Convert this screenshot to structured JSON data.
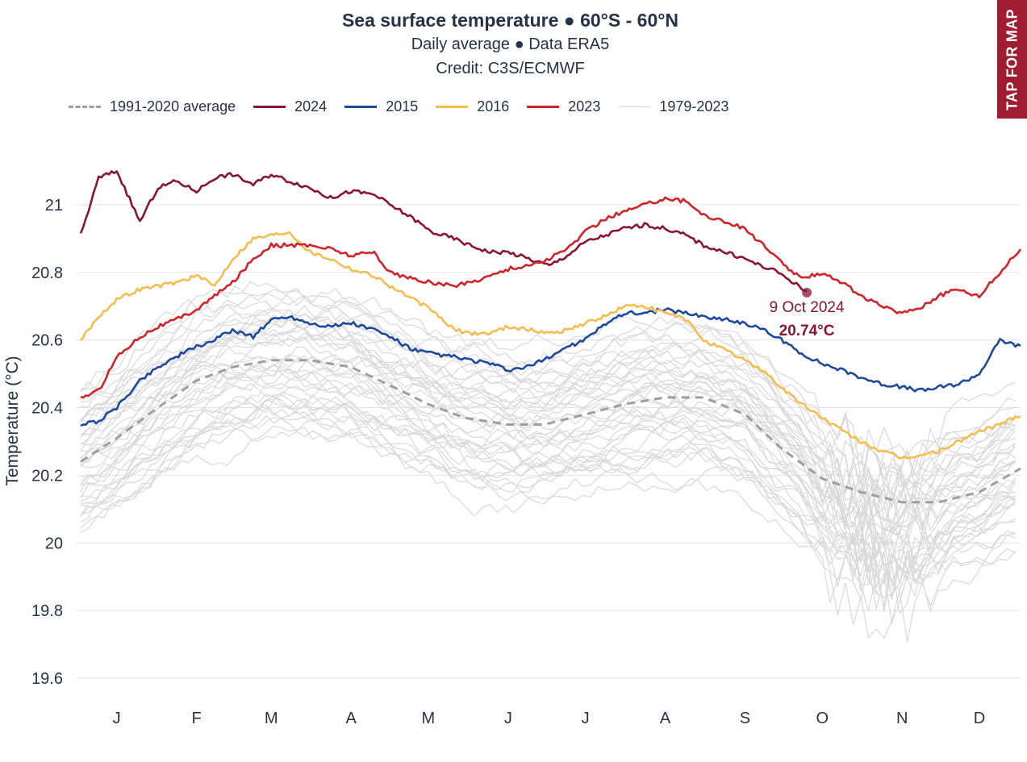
{
  "header": {
    "title": "Sea surface temperature ● 60°S - 60°N",
    "subtitle": "Daily average ● Data ERA5",
    "credit": "Credit: C3S/ECMWF"
  },
  "tap_button": {
    "label": "TAP FOR MAP"
  },
  "colors": {
    "avg": "#9e9e9e",
    "y2024": "#8a1530",
    "y2015": "#1f4a9c",
    "y2016": "#f5bd4f",
    "y2023": "#d0232a",
    "y1979_2023": "#d9d9d9",
    "accent": "#a01c31"
  },
  "legend": [
    {
      "name": "1991-2020 average",
      "color": "#9e9e9e",
      "dashed": true
    },
    {
      "name": "2024",
      "color": "#8a1530",
      "dashed": false
    },
    {
      "name": "2015",
      "color": "#1f4a9c",
      "dashed": false
    },
    {
      "name": "2016",
      "color": "#f5bd4f",
      "dashed": false
    },
    {
      "name": "2023",
      "color": "#d0232a",
      "dashed": false
    },
    {
      "name": "1979-2023",
      "color": "#d9d9d9",
      "dashed": false
    }
  ],
  "annotation": {
    "date": "9 Oct 2024",
    "value": "20.74°C",
    "x_day": 283,
    "y": 20.74
  },
  "chart_data": {
    "type": "line",
    "title": "Sea surface temperature ● 60°S - 60°N",
    "subtitle": "Daily average ● Data ERA5",
    "xlabel": "",
    "ylabel": "Temperature (°C)",
    "ylim": [
      19.55,
      21.2
    ],
    "xlim": [
      1,
      366
    ],
    "yticks": [
      19.6,
      19.8,
      20,
      20.2,
      20.4,
      20.6,
      20.8,
      21
    ],
    "ytick_labels": [
      "19.6",
      "19.8",
      "20",
      "20.2",
      "20.4",
      "20.6",
      "20.8",
      "21"
    ],
    "month_labels": [
      "J",
      "F",
      "M",
      "A",
      "M",
      "J",
      "J",
      "A",
      "S",
      "O",
      "N",
      "D"
    ],
    "month_label_days": [
      15,
      46,
      75,
      106,
      136,
      167,
      197,
      228,
      259,
      289,
      320,
      350
    ],
    "grid": true,
    "legend_position": "top-left",
    "series": [
      {
        "name": "1991-2020 average",
        "color": "#9e9e9e",
        "dashed": true,
        "x": [
          1,
          15,
          31,
          46,
          60,
          75,
          90,
          106,
          120,
          136,
          150,
          167,
          181,
          197,
          212,
          228,
          243,
          259,
          273,
          289,
          304,
          320,
          334,
          350,
          366
        ],
        "values": [
          20.24,
          20.31,
          20.4,
          20.48,
          20.52,
          20.54,
          20.54,
          20.52,
          20.47,
          20.41,
          20.37,
          20.35,
          20.35,
          20.38,
          20.41,
          20.43,
          20.43,
          20.38,
          20.28,
          20.19,
          20.15,
          20.12,
          20.12,
          20.15,
          20.22
        ]
      },
      {
        "name": "2024",
        "color": "#8a1530",
        "dashed": false,
        "x": [
          1,
          8,
          15,
          24,
          31,
          38,
          46,
          53,
          60,
          68,
          75,
          82,
          90,
          98,
          106,
          115,
          121,
          130,
          137,
          146,
          152,
          160,
          167,
          175,
          183,
          190,
          197,
          205,
          212,
          220,
          228,
          236,
          243,
          251,
          259,
          265,
          272,
          278,
          283
        ],
        "values": [
          20.91,
          21.08,
          21.1,
          20.95,
          21.05,
          21.07,
          21.04,
          21.08,
          21.09,
          21.06,
          21.09,
          21.07,
          21.05,
          21.02,
          21.04,
          21.03,
          21.0,
          20.96,
          20.92,
          20.9,
          20.88,
          20.86,
          20.86,
          20.84,
          20.82,
          20.85,
          20.89,
          20.91,
          20.93,
          20.94,
          20.93,
          20.91,
          20.88,
          20.86,
          20.84,
          20.82,
          20.8,
          20.77,
          20.74
        ]
      },
      {
        "name": "2015",
        "color": "#1f4a9c",
        "dashed": false,
        "x": [
          1,
          8,
          15,
          24,
          31,
          38,
          46,
          53,
          60,
          68,
          75,
          82,
          90,
          98,
          106,
          115,
          121,
          130,
          137,
          146,
          152,
          160,
          167,
          175,
          183,
          190,
          197,
          205,
          212,
          220,
          228,
          236,
          243,
          251,
          259,
          266,
          273,
          281,
          289,
          297,
          304,
          312,
          320,
          328,
          334,
          342,
          350,
          358,
          366
        ],
        "values": [
          20.35,
          20.36,
          20.4,
          20.48,
          20.52,
          20.55,
          20.58,
          20.6,
          20.63,
          20.61,
          20.66,
          20.67,
          20.65,
          20.64,
          20.65,
          20.63,
          20.61,
          20.57,
          20.56,
          20.55,
          20.54,
          20.53,
          20.51,
          20.52,
          20.55,
          20.58,
          20.6,
          20.65,
          20.68,
          20.68,
          20.69,
          20.68,
          20.67,
          20.66,
          20.65,
          20.63,
          20.6,
          20.56,
          20.53,
          20.51,
          20.49,
          20.47,
          20.46,
          20.45,
          20.46,
          20.47,
          20.5,
          20.6,
          20.58
        ]
      },
      {
        "name": "2016",
        "color": "#f5bd4f",
        "dashed": false,
        "x": [
          1,
          8,
          15,
          24,
          31,
          38,
          46,
          53,
          60,
          68,
          75,
          82,
          90,
          98,
          106,
          115,
          121,
          130,
          137,
          146,
          152,
          160,
          167,
          175,
          183,
          190,
          197,
          205,
          212,
          220,
          228,
          236,
          243,
          251,
          259,
          266,
          273,
          281,
          289,
          297,
          304,
          312,
          320,
          328,
          334,
          342,
          350,
          358,
          366
        ],
        "values": [
          20.6,
          20.67,
          20.72,
          20.75,
          20.76,
          20.77,
          20.79,
          20.76,
          20.84,
          20.9,
          20.91,
          20.92,
          20.86,
          20.84,
          20.81,
          20.79,
          20.76,
          20.72,
          20.69,
          20.63,
          20.62,
          20.62,
          20.64,
          20.63,
          20.62,
          20.63,
          20.65,
          20.67,
          20.7,
          20.7,
          20.68,
          20.66,
          20.6,
          20.57,
          20.54,
          20.51,
          20.46,
          20.41,
          20.37,
          20.33,
          20.3,
          20.27,
          20.25,
          20.26,
          20.27,
          20.3,
          20.33,
          20.35,
          20.38
        ]
      },
      {
        "name": "2023",
        "color": "#d0232a",
        "dashed": false,
        "x": [
          1,
          8,
          15,
          24,
          31,
          38,
          46,
          53,
          60,
          68,
          75,
          82,
          90,
          98,
          106,
          115,
          121,
          130,
          137,
          146,
          152,
          160,
          167,
          175,
          183,
          190,
          197,
          205,
          212,
          220,
          228,
          236,
          243,
          251,
          259,
          266,
          273,
          281,
          289,
          297,
          304,
          312,
          320,
          328,
          334,
          342,
          350,
          358,
          366
        ],
        "values": [
          20.43,
          20.45,
          20.55,
          20.61,
          20.64,
          20.66,
          20.69,
          20.73,
          20.77,
          20.84,
          20.88,
          20.88,
          20.88,
          20.87,
          20.85,
          20.86,
          20.8,
          20.78,
          20.77,
          20.76,
          20.77,
          20.79,
          20.81,
          20.82,
          20.84,
          20.87,
          20.92,
          20.96,
          20.98,
          21.0,
          21.02,
          21.01,
          20.97,
          20.95,
          20.93,
          20.88,
          20.83,
          20.78,
          20.8,
          20.77,
          20.73,
          20.7,
          20.68,
          20.7,
          20.73,
          20.75,
          20.73,
          20.8,
          20.87
        ]
      }
    ]
  }
}
